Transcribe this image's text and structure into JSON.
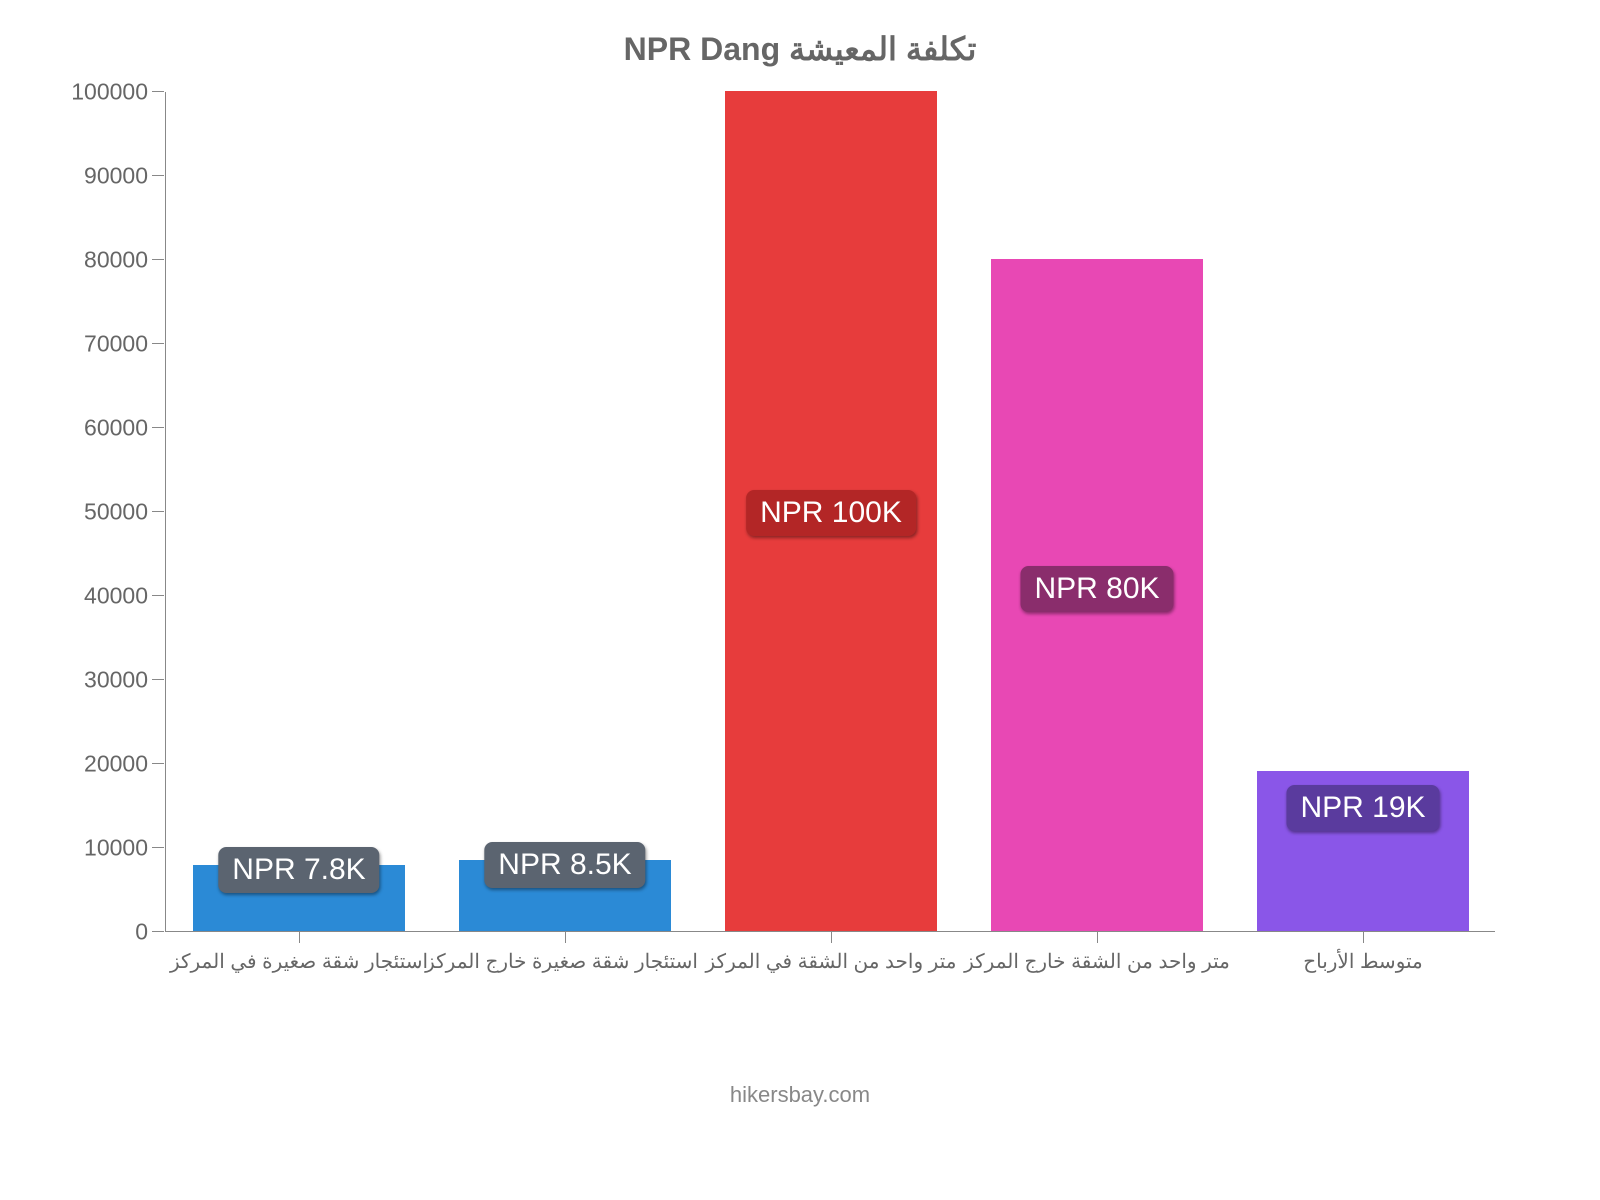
{
  "chart": {
    "type": "bar",
    "title": "NPR Dang تكلفة المعيشة",
    "title_color": "#666666",
    "title_fontsize": 32,
    "background_color": "#ffffff",
    "axis_color": "#888888",
    "tick_label_color": "#666666",
    "tick_fontsize": 23,
    "xlabel_fontsize": 20,
    "ylim": [
      0,
      100000
    ],
    "ytick_step": 10000,
    "yticks": [
      0,
      10000,
      20000,
      30000,
      40000,
      50000,
      60000,
      70000,
      80000,
      90000,
      100000
    ],
    "bar_width_ratio": 0.8,
    "categories": [
      "استئجار شقة صغيرة في المركز",
      "استئجار شقة صغيرة خارج المركز",
      "متر واحد من الشقة في المركز",
      "متر واحد من الشقة خارج المركز",
      "متوسط الأرباح"
    ],
    "values": [
      7800,
      8500,
      100000,
      80000,
      19000
    ],
    "bar_colors": [
      "#2b8ad6",
      "#2b8ad6",
      "#e73c3c",
      "#e848b4",
      "#8a56e8"
    ],
    "badges": [
      {
        "text": "NPR 7.8K",
        "bg": "#5b6470"
      },
      {
        "text": "NPR 8.5K",
        "bg": "#5b6470"
      },
      {
        "text": "NPR 100K",
        "bg": "#b32626"
      },
      {
        "text": "NPR 80K",
        "bg": "#8a2d6c"
      },
      {
        "text": "NPR 19K",
        "bg": "#5a3b9e"
      }
    ],
    "badge_fontsize": 30,
    "badge_text_color": "#ffffff"
  },
  "footer": {
    "text": "hikersbay.com",
    "color": "#888888",
    "fontsize": 22
  }
}
